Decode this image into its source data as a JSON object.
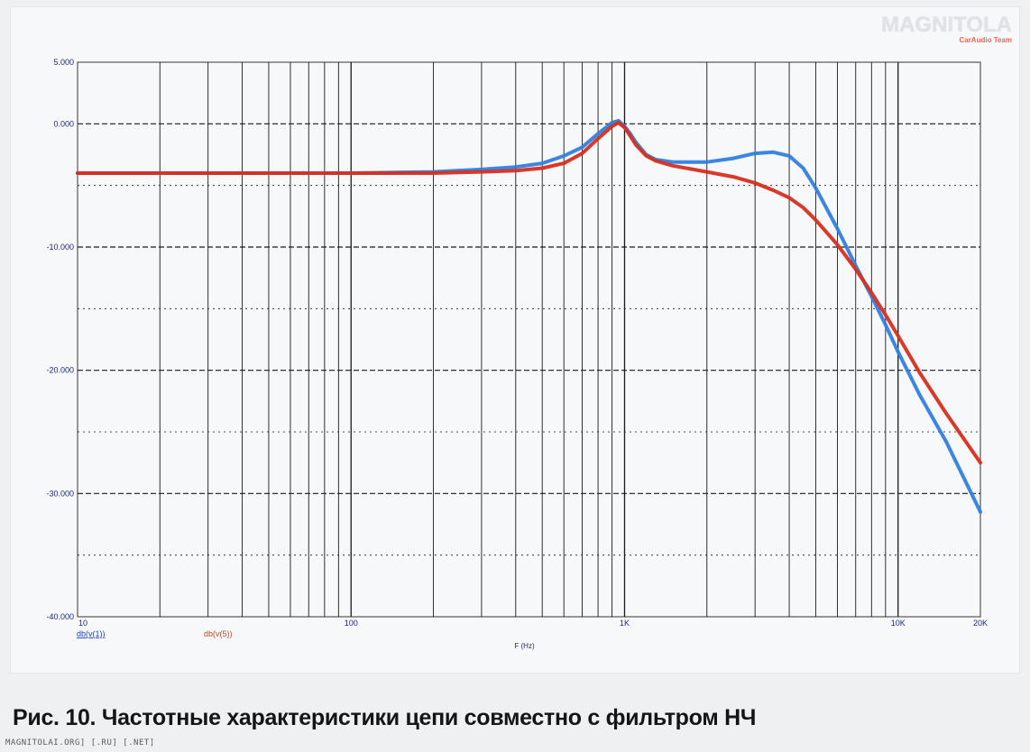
{
  "watermark": {
    "brand": "MAGNITOLA",
    "team": "CarAudio Team"
  },
  "caption": "Рис. 10. Частотные характеристики цепи совместно с фильтром НЧ",
  "site_label": "MAGNITOLAI.ORG] [.RU] [.NET]",
  "colors": {
    "series_1": "#2f7fe0",
    "series_2": "#d82e1e",
    "grid": "#1a1a1a",
    "frame": "#555555"
  },
  "chart_data": {
    "type": "line",
    "title": "",
    "xlabel": "F (Hz)",
    "ylabel": "",
    "x_scale": "log",
    "xlim": [
      10,
      20000
    ],
    "ylim": [
      -40,
      5
    ],
    "grid": true,
    "y_ticks": [
      {
        "value": 5,
        "label": "5.000"
      },
      {
        "value": 0,
        "label": "0.000"
      },
      {
        "value": -10,
        "label": "-10.000"
      },
      {
        "value": -20,
        "label": "-20.000"
      },
      {
        "value": -30,
        "label": "-30.000"
      },
      {
        "value": -40,
        "label": "-40.000"
      }
    ],
    "x_ticks": [
      {
        "value": 10,
        "label": "10"
      },
      {
        "value": 100,
        "label": "100"
      },
      {
        "value": 1000,
        "label": "1K"
      },
      {
        "value": 10000,
        "label": "10K"
      },
      {
        "value": 20000,
        "label": "20K"
      }
    ],
    "legend": [
      "db(v(1))",
      "db(v(5))"
    ],
    "legend_position": "bottom-left",
    "series": [
      {
        "x": [
          10,
          50,
          100,
          200,
          300,
          400,
          500,
          600,
          700,
          800,
          900,
          950,
          1000,
          1050,
          1100,
          1200,
          1300,
          1500,
          2000,
          2500,
          3000,
          3500,
          4000,
          4500,
          5000,
          6000,
          7000,
          8000,
          9000,
          10000,
          12000,
          15000,
          20000
        ],
        "y": [
          -4.0,
          -4.0,
          -4.0,
          -3.9,
          -3.7,
          -3.5,
          -3.2,
          -2.6,
          -1.9,
          -0.8,
          0.1,
          0.25,
          -0.2,
          -0.8,
          -1.5,
          -2.5,
          -2.9,
          -3.1,
          -3.1,
          -2.8,
          -2.4,
          -2.3,
          -2.6,
          -3.6,
          -5.2,
          -8.5,
          -11.5,
          -14.0,
          -16.3,
          -18.5,
          -22.0,
          -25.8,
          -31.5
        ]
      },
      {
        "x": [
          10,
          50,
          100,
          200,
          300,
          400,
          500,
          600,
          700,
          800,
          900,
          950,
          1000,
          1050,
          1100,
          1200,
          1300,
          1500,
          2000,
          2500,
          3000,
          3500,
          4000,
          4500,
          5000,
          6000,
          7000,
          8000,
          9000,
          10000,
          12000,
          15000,
          20000
        ],
        "y": [
          -4.0,
          -4.0,
          -4.0,
          -4.0,
          -3.9,
          -3.8,
          -3.6,
          -3.2,
          -2.4,
          -1.2,
          -0.2,
          0.1,
          -0.3,
          -1.0,
          -1.7,
          -2.6,
          -3.0,
          -3.4,
          -3.9,
          -4.3,
          -4.8,
          -5.4,
          -6.0,
          -6.8,
          -7.8,
          -9.8,
          -11.8,
          -13.7,
          -15.5,
          -17.2,
          -20.2,
          -23.5,
          -27.5
        ]
      }
    ]
  }
}
